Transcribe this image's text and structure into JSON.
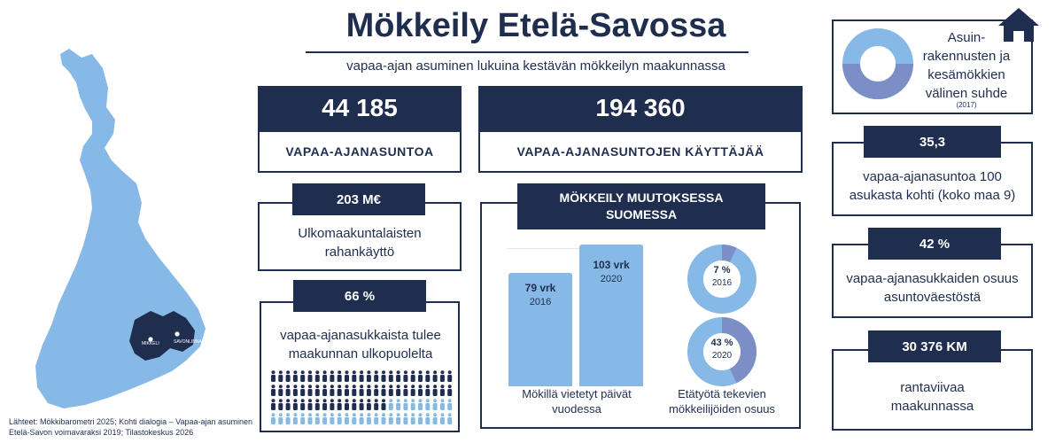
{
  "header": {
    "title": "Mökkeily Etelä-Savossa",
    "subtitle": "vapaa-ajan asuminen lukuina kestävän mökkeilyn maakunnassa"
  },
  "map": {
    "city_mikkeli": "MIKKELI",
    "city_savonlinna": "SAVONLINNA",
    "colors": {
      "finland": "#86b9e6",
      "region": "#1f2d4f"
    }
  },
  "stats": {
    "homes": {
      "value": "44 185",
      "label": "VAPAA-AJANASUNTOA"
    },
    "users": {
      "value": "194 360",
      "label": "VAPAA-AJANASUNTOJEN KÄYTTÄJÄÄ"
    },
    "spending": {
      "value": "203 M€",
      "label": "Ulkomaakuntalaisten rahankäyttö"
    },
    "outside": {
      "value": "66 %",
      "label": "vapaa-ajanasukkaista tulee maakunnan ulkopuolelta",
      "fraction": 0.66
    },
    "per100": {
      "value": "35,3",
      "label": "vapaa-ajanasuntoa 100 asukasta kohti (koko maa 9)"
    },
    "share": {
      "value": "42 %",
      "label": "vapaa-ajanasukkaiden osuus asuntoväestöstä"
    },
    "shore": {
      "value": "30 376 KM",
      "label": "rantaviivaa maakunnassa"
    }
  },
  "ratio": {
    "label": "Asuin- rakennusten ja kesämökkien välinen suhde",
    "year": "(2017)",
    "home_icon": "house-icon"
  },
  "change": {
    "title": "MÖKKEILY MUUTOKSESSA SUOMESSA",
    "bars_label": "Mökillä vietetyt päivät vuodessa",
    "bars": [
      {
        "value_label": "79 vrk",
        "year": "2016",
        "value": 79
      },
      {
        "value_label": "103 vrk",
        "year": "2020",
        "value": 103
      }
    ],
    "donuts_label": "Etätyötä tekevien mökkeilijöiden osuus",
    "donuts": [
      {
        "value_label": "7 %",
        "year": "2016",
        "value": 7
      },
      {
        "value_label": "43 %",
        "year": "2020",
        "value": 43
      }
    ]
  },
  "colors": {
    "navy": "#1f2d4f",
    "light_blue": "#86b9e6",
    "mid_blue": "#7b8fc6"
  },
  "source": "Lähteet: Mökkibarometri 2025; Kohti dialogia – Vapaa-ajan asuminen Etelä-Savon voimavaraksi 2019; Tilastokeskus 2026"
}
